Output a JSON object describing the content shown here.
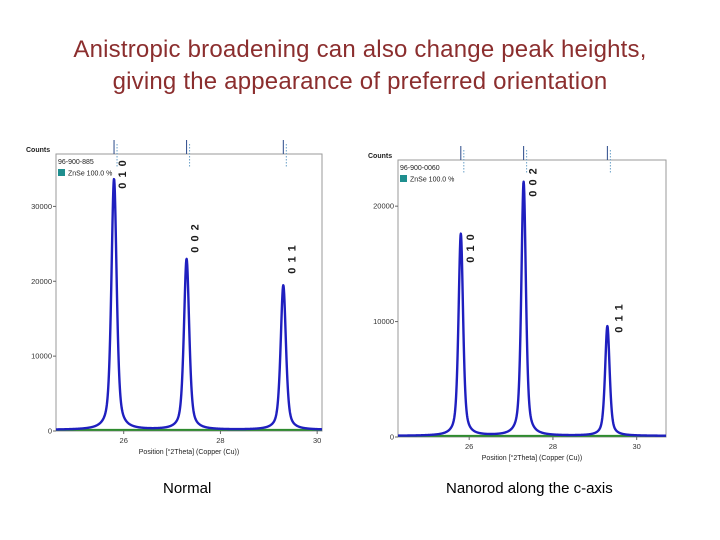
{
  "slide": {
    "title_line1": "Anistropic broadening can also change peak heights,",
    "title_line2": "giving the appearance of preferred orientation"
  },
  "captions": {
    "left": "Normal",
    "right": "Nanorod along the c-axis"
  },
  "colors": {
    "title": "#8b2e2e",
    "trace": "#1f1fbf",
    "baseline": "#2e8b2e",
    "legend_swatch": "#1f8f8f"
  },
  "chart_data": [
    {
      "type": "line",
      "name": "normal",
      "ylabel": "Counts",
      "xlabel": "Position [°2Theta] (Copper (Cu))",
      "xlim": [
        24.6,
        30.1
      ],
      "ylim": [
        0,
        37000
      ],
      "x_ticks": [
        26,
        28,
        30
      ],
      "y_ticks": [
        0,
        10000,
        20000,
        30000
      ],
      "legend": {
        "ref": "96-900-885",
        "series": "ZnSe 100.0 %"
      },
      "peaks": [
        {
          "hkl": "0 1 0",
          "x": 25.8,
          "y": 33500
        },
        {
          "hkl": "0 0 2",
          "x": 27.3,
          "y": 22800
        },
        {
          "hkl": "0 1 1",
          "x": 29.3,
          "y": 19300
        }
      ],
      "fwhm": 0.13
    },
    {
      "type": "line",
      "name": "nanorod",
      "ylabel": "Counts",
      "xlabel": "Position [°2Theta] (Copper (Cu))",
      "xlim": [
        24.3,
        30.7
      ],
      "ylim": [
        0,
        24000
      ],
      "x_ticks": [
        26,
        28,
        30
      ],
      "y_ticks": [
        0,
        10000,
        20000
      ],
      "legend": {
        "ref": "96-900-0060",
        "series": "ZnSe 100.0 %"
      },
      "peaks": [
        {
          "hkl": "0 1 0",
          "x": 25.8,
          "y": 17500
        },
        {
          "hkl": "0 0 2",
          "x": 27.3,
          "y": 22000
        },
        {
          "hkl": "0 1 1",
          "x": 29.3,
          "y": 9500
        }
      ],
      "fwhm": 0.13
    }
  ]
}
